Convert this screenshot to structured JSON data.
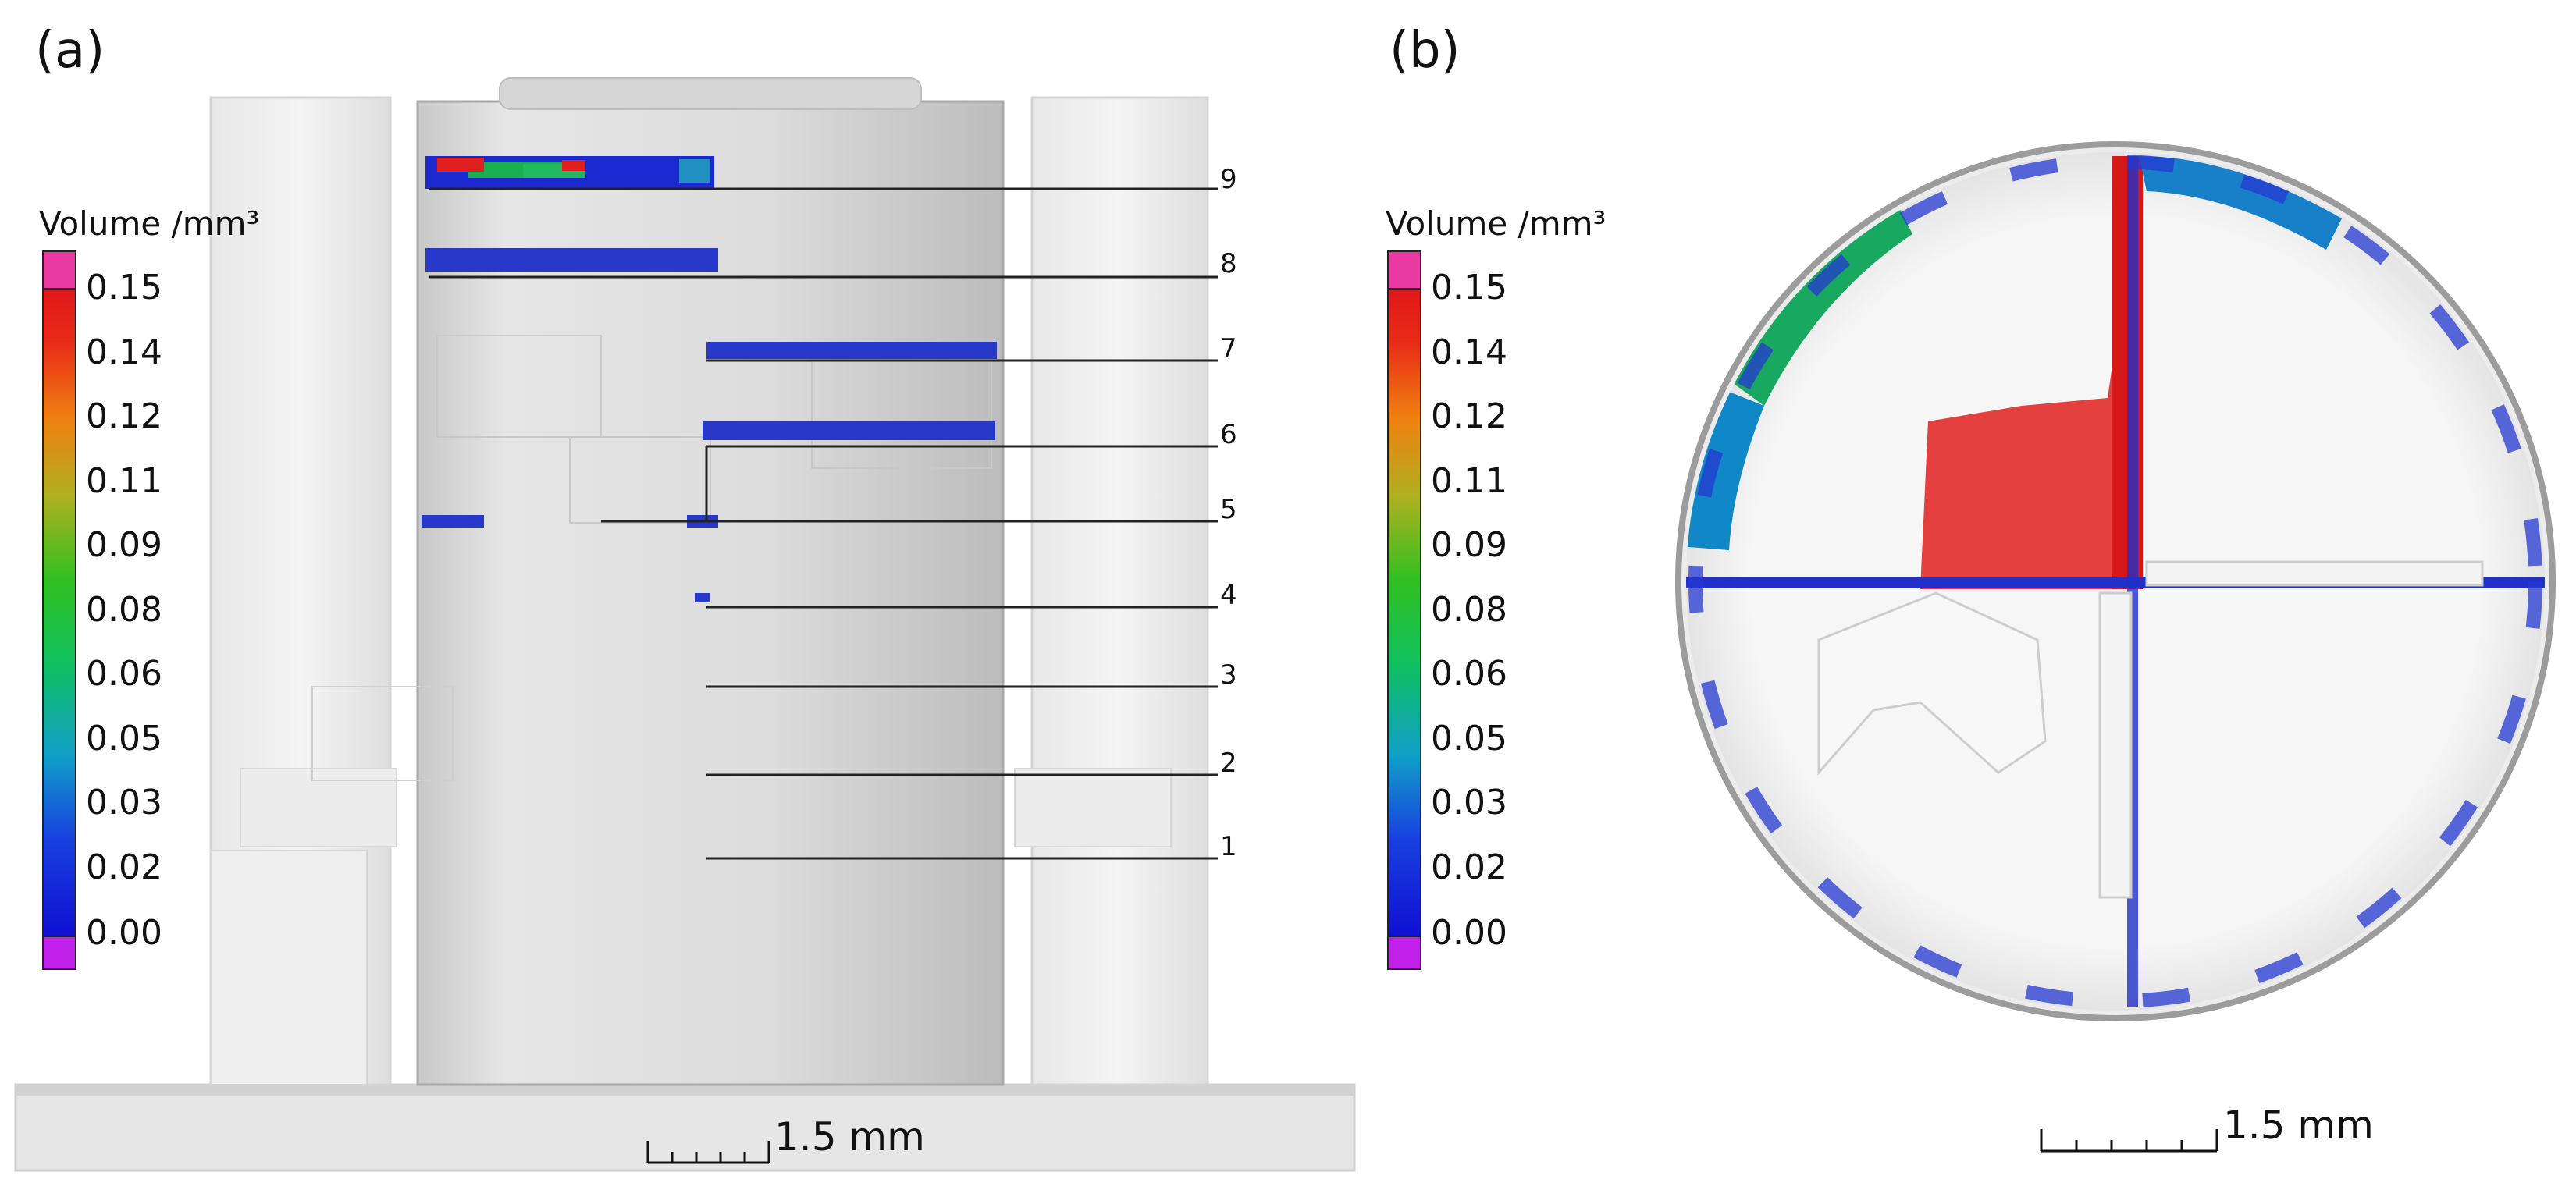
{
  "panels": [
    {
      "letter": "(a)"
    },
    {
      "letter": "(b)"
    }
  ],
  "colorbar": {
    "title": "Volume /mm³",
    "ticks": [
      "0.15",
      "0.14",
      "0.12",
      "0.11",
      "0.09",
      "0.08",
      "0.06",
      "0.05",
      "0.03",
      "0.02",
      "0.00"
    ],
    "min": 0.0,
    "max": 0.15,
    "colors": {
      "top_cap": "#e83aa0",
      "red": "#e02020",
      "orange": "#f07a10",
      "yellow": "#c8b41a",
      "green": "#18c018",
      "cyan": "#10a8b8",
      "blue": "#1818d8",
      "bottom_cap": "#c020e8"
    }
  },
  "layer_labels": [
    "9",
    "8",
    "7",
    "6",
    "5",
    "4",
    "3",
    "2",
    "1"
  ],
  "scale_bars": [
    {
      "label": "1.5 mm"
    },
    {
      "label": "1.5 mm"
    }
  ]
}
